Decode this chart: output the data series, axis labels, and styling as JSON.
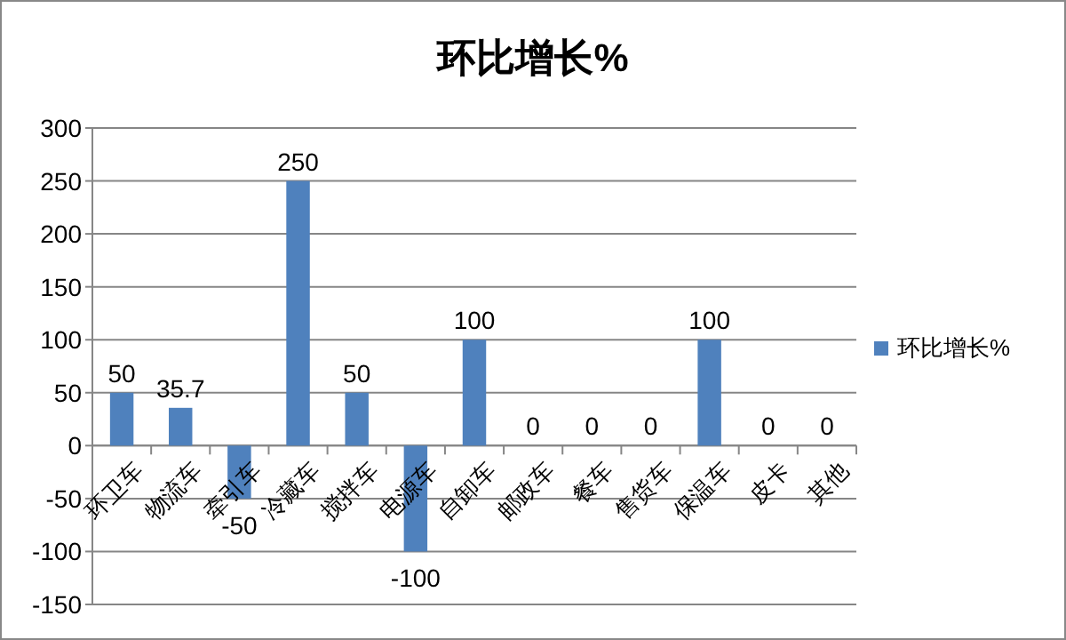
{
  "chart_data": {
    "type": "bar",
    "title": "环比增长%",
    "categories": [
      "环卫车",
      "物流车",
      "牵引车",
      "冷藏车",
      "搅拌车",
      "电源车",
      "自卸车",
      "邮政车",
      "餐车",
      "售货车",
      "保温车",
      "皮卡",
      "其他"
    ],
    "series": [
      {
        "name": "环比增长%",
        "color": "#4f81bd",
        "values": [
          50,
          35.7,
          -50,
          250,
          50,
          -100,
          100,
          0,
          0,
          0,
          100,
          0,
          0
        ]
      }
    ],
    "ylim": [
      -150,
      300
    ],
    "yticks": [
      -150,
      -100,
      -50,
      0,
      50,
      100,
      150,
      200,
      250,
      300
    ],
    "grid": "y",
    "legend": "right",
    "data_labels": true
  }
}
